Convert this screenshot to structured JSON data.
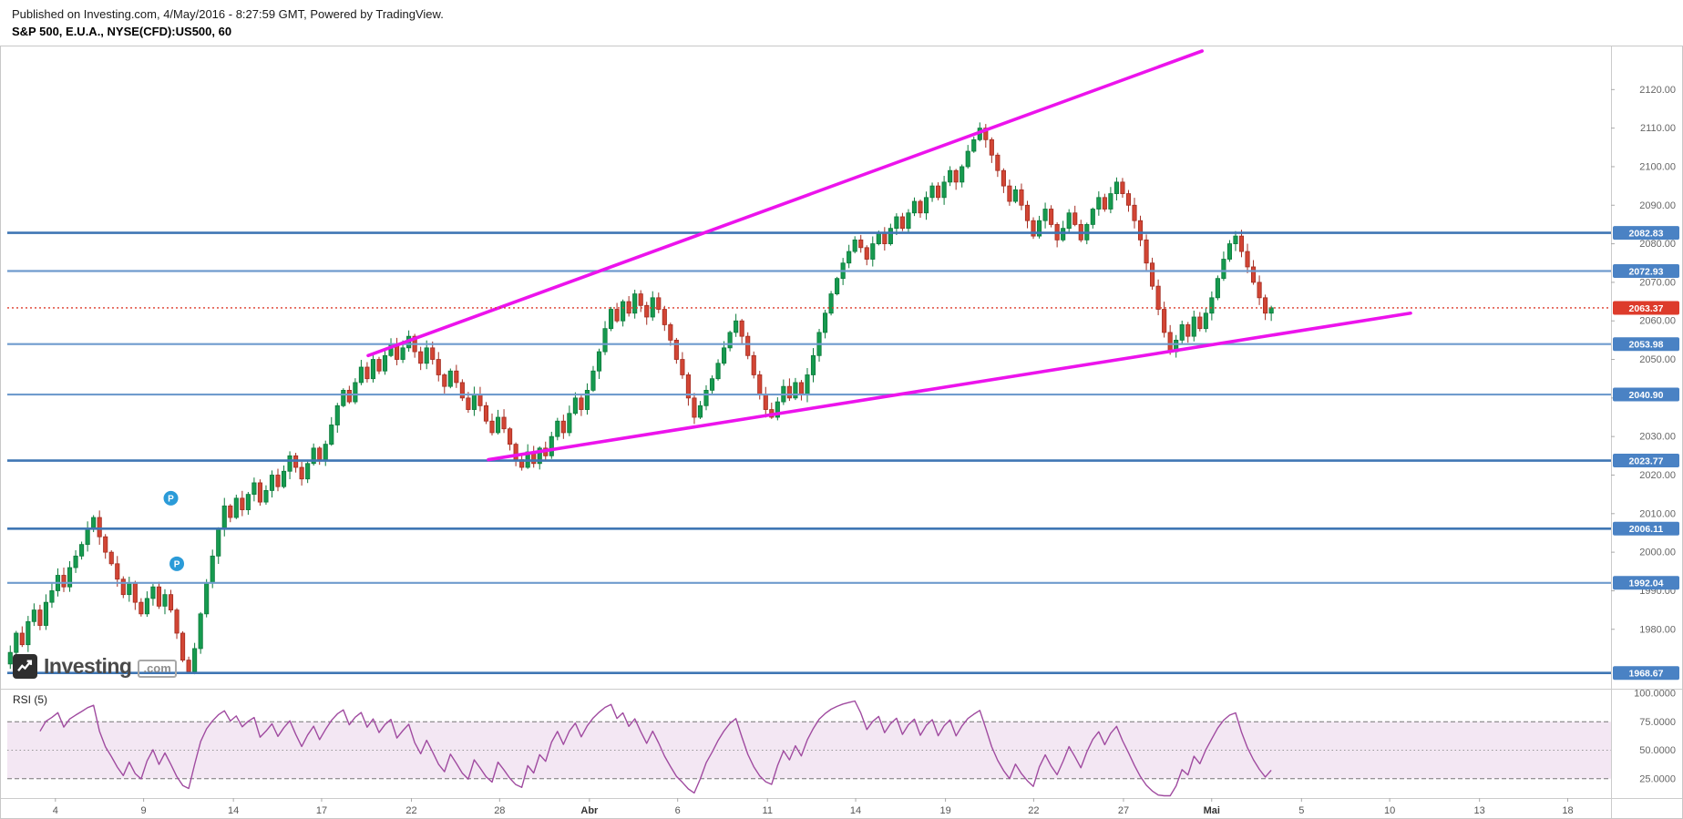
{
  "header": {
    "published": "Published on Investing.com, 4/May/2016 - 8:27:59 GMT, Powered by TradingView.",
    "instrument": "S&P 500, E.U.A., NYSE(CFD):US500, 60"
  },
  "watermark": {
    "name": "Investing",
    "tld": ".com"
  },
  "colors": {
    "up": "#169a4f",
    "up_border": "#0b7a3a",
    "down": "#d24534",
    "down_border": "#a32c20",
    "level_strong": "#3f76b4",
    "level_light": "#6f9bcd",
    "level_label": "#4a82c4",
    "current": "#dd3b2b",
    "trend": "#ec13ec",
    "rsi": "#a04ba0",
    "rsi_band": "rgba(160,70,160,0.13)",
    "axis_text": "#666666"
  },
  "chart_data": {
    "type": "candlestick",
    "title": "S&P 500, E.U.A., NYSE(CFD):US500, 60",
    "interval_minutes": 60,
    "current_price": 2063.37,
    "data_span_fraction": 0.79,
    "price_axis": {
      "min": 1966,
      "max": 2130,
      "ticks": [
        2120,
        2110,
        2100,
        2090,
        2080,
        2070,
        2060,
        2050,
        2040,
        2030,
        2020,
        2010,
        2000,
        1990,
        1980
      ]
    },
    "x_axis": {
      "labels": [
        "4",
        "9",
        "14",
        "17",
        "22",
        "28",
        "Abr",
        "6",
        "11",
        "14",
        "19",
        "22",
        "27",
        "Mai",
        "5",
        "10",
        "13",
        "18"
      ],
      "fractions": [
        0.03,
        0.085,
        0.141,
        0.196,
        0.252,
        0.307,
        0.363,
        0.418,
        0.474,
        0.529,
        0.585,
        0.64,
        0.696,
        0.751,
        0.807,
        0.862,
        0.918,
        0.973
      ],
      "month_indices": [
        6,
        13
      ]
    },
    "closes": [
      1974,
      1979,
      1976,
      1982,
      1985,
      1981,
      1987,
      1990,
      1994,
      1991,
      1996,
      1999,
      2002,
      2006,
      2009,
      2004,
      2000,
      1997,
      1993,
      1989,
      1992,
      1987,
      1984,
      1988,
      1991,
      1986,
      1989,
      1985,
      1979,
      1972,
      1969,
      1975,
      1984,
      1992,
      1999,
      2006,
      2012,
      2009,
      2014,
      2011,
      2015,
      2018,
      2013,
      2016,
      2020,
      2017,
      2021,
      2025,
      2022,
      2019,
      2023,
      2027,
      2024,
      2028,
      2033,
      2038,
      2042,
      2039,
      2044,
      2048,
      2045,
      2050,
      2047,
      2051,
      2054,
      2050,
      2053,
      2056,
      2052,
      2049,
      2053,
      2050,
      2046,
      2043,
      2047,
      2044,
      2040,
      2037,
      2041,
      2038,
      2034,
      2031,
      2035,
      2032,
      2028,
      2024,
      2022,
      2026,
      2023,
      2027,
      2025,
      2030,
      2034,
      2031,
      2036,
      2040,
      2037,
      2042,
      2047,
      2052,
      2058,
      2063,
      2060,
      2065,
      2062,
      2067,
      2064,
      2061,
      2066,
      2063,
      2059,
      2055,
      2050,
      2046,
      2040,
      2035,
      2038,
      2042,
      2045,
      2049,
      2053,
      2057,
      2060,
      2056,
      2051,
      2046,
      2041,
      2037,
      2035,
      2039,
      2043,
      2040,
      2044,
      2041,
      2046,
      2051,
      2057,
      2062,
      2067,
      2071,
      2075,
      2078,
      2081,
      2079,
      2076,
      2080,
      2083,
      2080,
      2084,
      2087,
      2084,
      2088,
      2091,
      2088,
      2092,
      2095,
      2092,
      2096,
      2099,
      2096,
      2100,
      2104,
      2107,
      2110,
      2107,
      2103,
      2099,
      2095,
      2091,
      2094,
      2090,
      2086,
      2082,
      2086,
      2089,
      2085,
      2081,
      2084,
      2088,
      2085,
      2081,
      2085,
      2089,
      2092,
      2089,
      2093,
      2096,
      2093,
      2090,
      2086,
      2081,
      2075,
      2069,
      2063,
      2057,
      2052,
      2055,
      2059,
      2056,
      2061,
      2058,
      2062,
      2066,
      2071,
      2076,
      2080,
      2082,
      2078,
      2074,
      2070,
      2066,
      2062,
      2063.4
    ],
    "levels": [
      {
        "price": 2082.83,
        "strong": true
      },
      {
        "price": 2072.93,
        "strong": false
      },
      {
        "price": 2053.98,
        "strong": false
      },
      {
        "price": 2040.9,
        "strong": false
      },
      {
        "price": 2023.77,
        "strong": true
      },
      {
        "price": 2006.11,
        "strong": true
      },
      {
        "price": 1992.04,
        "strong": false
      },
      {
        "price": 1968.67,
        "strong": true
      }
    ],
    "trend_lines": [
      {
        "x1": 0.225,
        "p1": 2051,
        "x2": 0.745,
        "p2": 2130
      },
      {
        "x1": 0.3,
        "p1": 2024,
        "x2": 0.875,
        "p2": 2062
      }
    ],
    "markers": [
      {
        "index": 27,
        "price": 2014,
        "label": "P",
        "color": "#2b9bd8"
      },
      {
        "index": 28,
        "price": 1997,
        "label": "P",
        "color": "#2b9bd8"
      }
    ],
    "rsi": {
      "label": "RSI (5)",
      "period": 5,
      "axis_ticks": [
        100,
        75,
        50,
        25
      ],
      "band": [
        25,
        75
      ],
      "mid": 50,
      "domain": [
        8,
        104
      ]
    }
  }
}
